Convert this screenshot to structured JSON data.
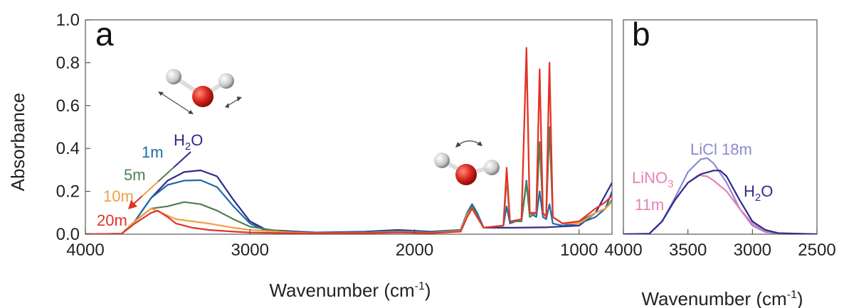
{
  "chart_data": [
    {
      "type": "line",
      "panel": "a",
      "xlabel": "Wavenumber (cm",
      "xlabel_sup": "-1",
      "xlabel_end": ")",
      "ylabel": "Absorbance",
      "xlim": [
        4000,
        800
      ],
      "ylim": [
        0,
        1.0
      ],
      "x_ticks": [
        "4000",
        "3000",
        "2000",
        "1000"
      ],
      "y_ticks": [
        "0.0",
        "0.2",
        "0.4",
        "0.6",
        "0.8",
        "1.0"
      ],
      "labels": {
        "h2o_main": "H",
        "h2o_sub": "2",
        "h2o_end": "O",
        "c1": "1m",
        "c5": "5m",
        "c10": "10m",
        "c20": "20m"
      },
      "series": [
        {
          "name": "H2O",
          "color": "#2e2a8a",
          "points": [
            [
              4000,
              0
            ],
            [
              3780,
              0.002
            ],
            [
              3700,
              0.06
            ],
            [
              3600,
              0.17
            ],
            [
              3500,
              0.25
            ],
            [
              3400,
              0.29
            ],
            [
              3300,
              0.298
            ],
            [
              3200,
              0.27
            ],
            [
              3100,
              0.16
            ],
            [
              3000,
              0.06
            ],
            [
              2900,
              0.02
            ],
            [
              2600,
              0.008
            ],
            [
              2300,
              0.012
            ],
            [
              2100,
              0.02
            ],
            [
              1900,
              0.012
            ],
            [
              1720,
              0.02
            ],
            [
              1680,
              0.1
            ],
            [
              1650,
              0.14
            ],
            [
              1620,
              0.1
            ],
            [
              1580,
              0.03
            ],
            [
              1400,
              0.03
            ],
            [
              1200,
              0.032
            ],
            [
              1000,
              0.04
            ],
            [
              900,
              0.1
            ],
            [
              800,
              0.24
            ]
          ]
        },
        {
          "name": "1m",
          "color": "#1e6aa8",
          "points": [
            [
              4000,
              0
            ],
            [
              3780,
              0.002
            ],
            [
              3700,
              0.06
            ],
            [
              3600,
              0.17
            ],
            [
              3500,
              0.23
            ],
            [
              3400,
              0.25
            ],
            [
              3300,
              0.252
            ],
            [
              3200,
              0.22
            ],
            [
              3100,
              0.13
            ],
            [
              3000,
              0.05
            ],
            [
              2900,
              0.015
            ],
            [
              2600,
              0.006
            ],
            [
              2300,
              0.01
            ],
            [
              2100,
              0.016
            ],
            [
              1900,
              0.01
            ],
            [
              1720,
              0.02
            ],
            [
              1680,
              0.1
            ],
            [
              1650,
              0.14
            ],
            [
              1620,
              0.1
            ],
            [
              1580,
              0.03
            ],
            [
              1460,
              0.04
            ],
            [
              1440,
              0.13
            ],
            [
              1420,
              0.05
            ],
            [
              1350,
              0.07
            ],
            [
              1320,
              0.25
            ],
            [
              1300,
              0.1
            ],
            [
              1260,
              0.08
            ],
            [
              1240,
              0.2
            ],
            [
              1220,
              0.08
            ],
            [
              1200,
              0.07
            ],
            [
              1180,
              0.14
            ],
            [
              1160,
              0.05
            ],
            [
              1100,
              0.04
            ],
            [
              1000,
              0.05
            ],
            [
              900,
              0.08
            ],
            [
              840,
              0.12
            ],
            [
              800,
              0.2
            ]
          ]
        },
        {
          "name": "5m",
          "color": "#4f7f56",
          "points": [
            [
              4000,
              0
            ],
            [
              3780,
              0.002
            ],
            [
              3700,
              0.06
            ],
            [
              3600,
              0.12
            ],
            [
              3500,
              0.13
            ],
            [
              3400,
              0.15
            ],
            [
              3300,
              0.14
            ],
            [
              3200,
              0.11
            ],
            [
              3100,
              0.07
            ],
            [
              3000,
              0.035
            ],
            [
              2800,
              0.012
            ],
            [
              2600,
              0.005
            ],
            [
              2300,
              0.008
            ],
            [
              2100,
              0.012
            ],
            [
              1900,
              0.008
            ],
            [
              1720,
              0.018
            ],
            [
              1680,
              0.1
            ],
            [
              1650,
              0.13
            ],
            [
              1620,
              0.09
            ],
            [
              1580,
              0.03
            ],
            [
              1460,
              0.04
            ],
            [
              1440,
              0.26
            ],
            [
              1420,
              0.06
            ],
            [
              1350,
              0.06
            ],
            [
              1320,
              0.24
            ],
            [
              1300,
              0.08
            ],
            [
              1260,
              0.1
            ],
            [
              1240,
              0.43
            ],
            [
              1220,
              0.1
            ],
            [
              1200,
              0.08
            ],
            [
              1180,
              0.5
            ],
            [
              1160,
              0.08
            ],
            [
              1100,
              0.05
            ],
            [
              1000,
              0.06
            ],
            [
              900,
              0.1
            ],
            [
              840,
              0.12
            ],
            [
              800,
              0.16
            ]
          ]
        },
        {
          "name": "10m",
          "color": "#f0a042",
          "points": [
            [
              4000,
              0
            ],
            [
              3780,
              0.002
            ],
            [
              3700,
              0.06
            ],
            [
              3600,
              0.12
            ],
            [
              3540,
              0.1
            ],
            [
              3450,
              0.07
            ],
            [
              3350,
              0.06
            ],
            [
              3250,
              0.05
            ],
            [
              3100,
              0.03
            ],
            [
              3000,
              0.02
            ],
            [
              2800,
              0.01
            ],
            [
              2600,
              0.004
            ],
            [
              2300,
              0.006
            ],
            [
              2100,
              0.01
            ],
            [
              1900,
              0.006
            ],
            [
              1720,
              0.015
            ],
            [
              1680,
              0.09
            ],
            [
              1650,
              0.12
            ],
            [
              1620,
              0.08
            ],
            [
              1580,
              0.03
            ],
            [
              1460,
              0.04
            ],
            [
              1440,
              0.29
            ],
            [
              1420,
              0.06
            ],
            [
              1350,
              0.07
            ],
            [
              1320,
              0.85
            ],
            [
              1300,
              0.1
            ],
            [
              1260,
              0.1
            ],
            [
              1240,
              0.76
            ],
            [
              1220,
              0.1
            ],
            [
              1200,
              0.08
            ],
            [
              1180,
              0.79
            ],
            [
              1160,
              0.08
            ],
            [
              1100,
              0.05
            ],
            [
              1000,
              0.05
            ],
            [
              900,
              0.1
            ],
            [
              840,
              0.12
            ],
            [
              800,
              0.15
            ]
          ]
        },
        {
          "name": "20m",
          "color": "#e2322a",
          "points": [
            [
              4000,
              0
            ],
            [
              3780,
              0.002
            ],
            [
              3700,
              0.05
            ],
            [
              3600,
              0.1
            ],
            [
              3560,
              0.11
            ],
            [
              3500,
              0.08
            ],
            [
              3450,
              0.05
            ],
            [
              3350,
              0.03
            ],
            [
              3250,
              0.02
            ],
            [
              3100,
              0.012
            ],
            [
              3000,
              0.008
            ],
            [
              2800,
              0.005
            ],
            [
              2600,
              0.003
            ],
            [
              2300,
              0.005
            ],
            [
              2100,
              0.008
            ],
            [
              1900,
              0.005
            ],
            [
              1720,
              0.012
            ],
            [
              1680,
              0.08
            ],
            [
              1650,
              0.12
            ],
            [
              1620,
              0.08
            ],
            [
              1580,
              0.03
            ],
            [
              1460,
              0.04
            ],
            [
              1440,
              0.31
            ],
            [
              1420,
              0.06
            ],
            [
              1350,
              0.07
            ],
            [
              1320,
              0.87
            ],
            [
              1300,
              0.1
            ],
            [
              1260,
              0.1
            ],
            [
              1240,
              0.77
            ],
            [
              1220,
              0.1
            ],
            [
              1200,
              0.08
            ],
            [
              1180,
              0.8
            ],
            [
              1160,
              0.08
            ],
            [
              1100,
              0.05
            ],
            [
              1000,
              0.06
            ],
            [
              900,
              0.12
            ],
            [
              840,
              0.15
            ],
            [
              800,
              0.18
            ]
          ]
        }
      ]
    },
    {
      "type": "line",
      "panel": "b",
      "xlabel": "Wavenumber (cm",
      "xlabel_sup": "-1",
      "xlabel_end": ")",
      "xlim": [
        4000,
        2500
      ],
      "ylim": [
        0,
        1.0
      ],
      "x_ticks": [
        "4000",
        "3500",
        "3000",
        "2500"
      ],
      "labels": {
        "licl": "LiCl 18m",
        "lino3_main": "LiNO",
        "lino3_sub": "3",
        "lino3_line2": "11m",
        "h2o_main": "H",
        "h2o_sub": "2",
        "h2o_end": "O"
      },
      "series": [
        {
          "name": "LiCl 18m",
          "color": "#8c8ad0",
          "points": [
            [
              4000,
              0
            ],
            [
              3800,
              0.002
            ],
            [
              3700,
              0.06
            ],
            [
              3600,
              0.17
            ],
            [
              3500,
              0.29
            ],
            [
              3400,
              0.35
            ],
            [
              3350,
              0.355
            ],
            [
              3300,
              0.33
            ],
            [
              3200,
              0.24
            ],
            [
              3100,
              0.12
            ],
            [
              3000,
              0.04
            ],
            [
              2900,
              0.01
            ],
            [
              2800,
              0.003
            ],
            [
              2500,
              0
            ]
          ]
        },
        {
          "name": "LiNO3 11m",
          "color": "#e87fb8",
          "points": [
            [
              4000,
              0
            ],
            [
              3800,
              0.002
            ],
            [
              3700,
              0.06
            ],
            [
              3600,
              0.16
            ],
            [
              3500,
              0.24
            ],
            [
              3420,
              0.275
            ],
            [
              3350,
              0.27
            ],
            [
              3300,
              0.25
            ],
            [
              3200,
              0.2
            ],
            [
              3100,
              0.12
            ],
            [
              3000,
              0.05
            ],
            [
              2900,
              0.015
            ],
            [
              2800,
              0.004
            ],
            [
              2500,
              0
            ]
          ]
        },
        {
          "name": "H2O",
          "color": "#2e2a8a",
          "points": [
            [
              4000,
              0
            ],
            [
              3800,
              0.002
            ],
            [
              3700,
              0.06
            ],
            [
              3600,
              0.16
            ],
            [
              3500,
              0.24
            ],
            [
              3400,
              0.28
            ],
            [
              3300,
              0.297
            ],
            [
              3250,
              0.297
            ],
            [
              3200,
              0.27
            ],
            [
              3100,
              0.16
            ],
            [
              3000,
              0.06
            ],
            [
              2900,
              0.02
            ],
            [
              2800,
              0.005
            ],
            [
              2500,
              0
            ]
          ]
        }
      ]
    }
  ]
}
